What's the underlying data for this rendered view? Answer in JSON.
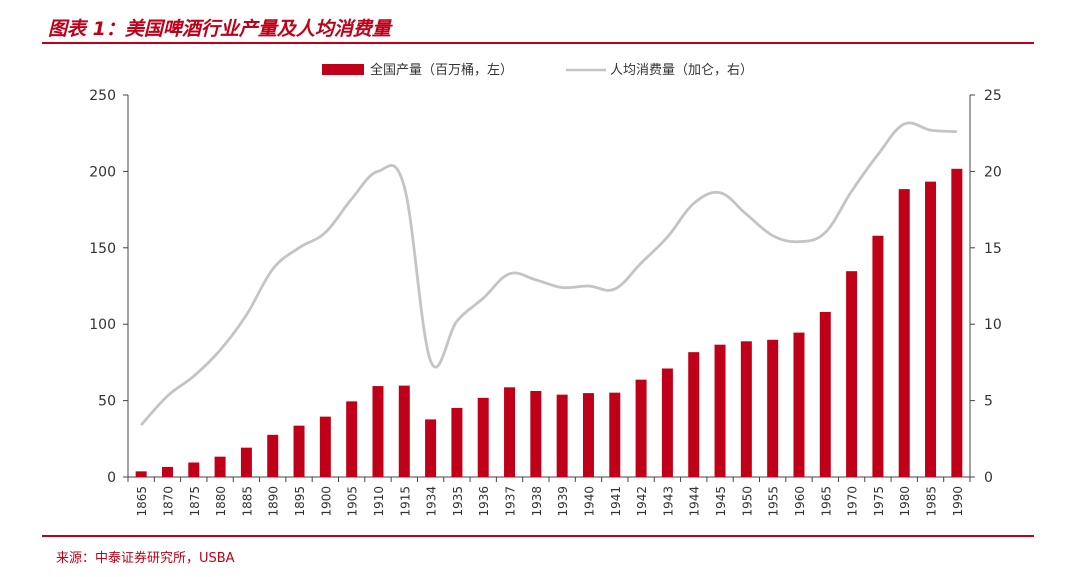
{
  "title": "图表 1：美国啤酒行业产量及人均消费量",
  "source": "来源：中泰证券研究所，USBA",
  "colors": {
    "bar": "#c00018",
    "line": "#c4c4c4",
    "accent": "#c00018",
    "axis": "#444444"
  },
  "chart_data": {
    "type": "bar",
    "categories": [
      "1865",
      "1870",
      "1875",
      "1880",
      "1885",
      "1890",
      "1895",
      "1900",
      "1905",
      "1910",
      "1915",
      "1934",
      "1935",
      "1936",
      "1937",
      "1938",
      "1939",
      "1940",
      "1941",
      "1942",
      "1943",
      "1944",
      "1945",
      "1950",
      "1955",
      "1960",
      "1965",
      "1970",
      "1975",
      "1980",
      "1985",
      "1990"
    ],
    "series": [
      {
        "name": "全国产量（百万桶，左）",
        "type": "bar",
        "axis": "left",
        "values": [
          3.7,
          6.6,
          9.5,
          13.3,
          19.2,
          27.6,
          33.6,
          39.5,
          49.5,
          59.5,
          59.8,
          37.7,
          45.2,
          51.8,
          58.7,
          56.3,
          53.9,
          54.9,
          55.2,
          63.7,
          71.0,
          81.7,
          86.6,
          88.8,
          89.8,
          94.5,
          108.0,
          134.7,
          157.9,
          188.4,
          193.3,
          201.7
        ]
      },
      {
        "name": "人均消费量（加仑，右）",
        "type": "line",
        "axis": "right",
        "values": [
          3.4,
          5.3,
          6.6,
          8.3,
          10.6,
          13.6,
          15.0,
          16.0,
          18.2,
          20.0,
          19.0,
          7.6,
          10.2,
          11.7,
          13.3,
          12.9,
          12.4,
          12.5,
          12.3,
          14.0,
          15.7,
          17.9,
          18.6,
          17.2,
          15.8,
          15.4,
          16.0,
          18.7,
          21.1,
          23.1,
          22.7,
          22.6
        ]
      }
    ],
    "ylim_left": [
      0,
      250
    ],
    "ylim_right": [
      0,
      25
    ],
    "yticks_left": [
      "0",
      "50",
      "100",
      "150",
      "200",
      "250"
    ],
    "yticks_right": [
      "0",
      "5",
      "10",
      "15",
      "20",
      "25"
    ],
    "legend_position": "top-center",
    "grid": false
  }
}
